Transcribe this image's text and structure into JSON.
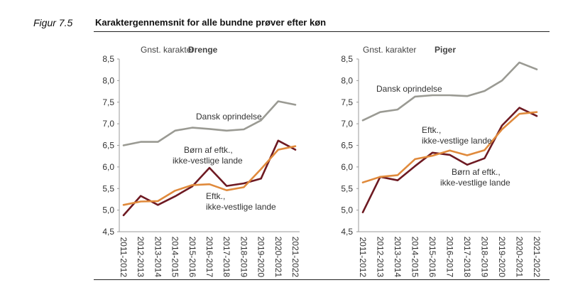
{
  "figure": {
    "label": "Figur 7.5",
    "title": "Karaktergennemsnit for alle bundne prøver efter køn"
  },
  "colors": {
    "dansk": "#9a9a93",
    "boern": "#6e1a22",
    "eftk": "#e08a3c",
    "axis": "#999999"
  },
  "chart_data": [
    {
      "type": "line",
      "title": "Drenge",
      "ylabel": "Gnst. karakter",
      "ylim": [
        4.5,
        8.5
      ],
      "yticks": [
        "8,5",
        "8,0",
        "7,5",
        "7,0",
        "6,5",
        "6,0",
        "5,5",
        "5,0",
        "4,5"
      ],
      "categories": [
        "2011-2012",
        "2012-2013",
        "2013-2014",
        "2014-2015",
        "2015-2016",
        "2016-2017",
        "2017-2018",
        "2018-2019",
        "2019-2020",
        "2020-2021",
        "2021-2022"
      ],
      "series": [
        {
          "name": "Dansk oprindelse",
          "values": [
            6.5,
            6.58,
            6.58,
            6.84,
            6.91,
            6.88,
            6.84,
            6.87,
            7.08,
            7.52,
            7.44
          ]
        },
        {
          "name": "Børn af eftk., ikke-vestlige lande",
          "values": [
            4.88,
            5.33,
            5.12,
            5.32,
            5.55,
            5.98,
            5.56,
            5.62,
            5.73,
            6.61,
            6.4
          ]
        },
        {
          "name": "Eftk., ikke-vestlige lande",
          "values": [
            5.12,
            5.2,
            5.21,
            5.45,
            5.58,
            5.6,
            5.46,
            5.53,
            5.95,
            6.4,
            6.48
          ]
        }
      ],
      "annotations": [
        {
          "lines": [
            "Dansk oprindelse"
          ]
        },
        {
          "lines": [
            "Børn af eftk.,",
            "ikke-vestlige lande"
          ]
        },
        {
          "lines": [
            "Eftk.,",
            "ikke-vestlige lande"
          ]
        }
      ]
    },
    {
      "type": "line",
      "title": "Piger",
      "ylabel": "Gnst. karakter",
      "ylim": [
        4.5,
        8.5
      ],
      "yticks": [
        "8,5",
        "8,0",
        "7,5",
        "7,0",
        "6,5",
        "6,0",
        "5,5",
        "5,0",
        "4,5"
      ],
      "categories": [
        "2011-2012",
        "2012-2013",
        "2013-2014",
        "2014-2015",
        "2015-2016",
        "2016-2017",
        "2017-2018",
        "2018-2019",
        "2019-2020",
        "2020-2021",
        "2021-2022"
      ],
      "series": [
        {
          "name": "Dansk oprindelse",
          "values": [
            7.08,
            7.27,
            7.33,
            7.63,
            7.66,
            7.66,
            7.64,
            7.76,
            8.0,
            8.42,
            8.26
          ]
        },
        {
          "name": "Børn af eftk., ikke-vestlige lande",
          "values": [
            4.95,
            5.77,
            5.69,
            6.02,
            6.33,
            6.28,
            6.05,
            6.2,
            6.96,
            7.37,
            7.18
          ]
        },
        {
          "name": "Eftk., ikke-vestlige lande",
          "values": [
            5.64,
            5.77,
            5.81,
            6.18,
            6.26,
            6.38,
            6.27,
            6.39,
            6.87,
            7.23,
            7.27
          ]
        }
      ],
      "annotations": [
        {
          "lines": [
            "Dansk oprindelse"
          ]
        },
        {
          "lines": [
            "Eftk.,",
            "ikke-vestlige lande"
          ]
        },
        {
          "lines": [
            "Børn af eftk.,",
            "ikke-vestlige lande"
          ]
        }
      ]
    }
  ]
}
